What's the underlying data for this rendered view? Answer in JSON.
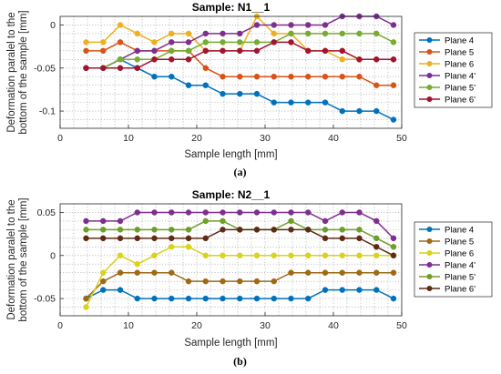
{
  "chart_data": [
    {
      "type": "line",
      "title": "Sample: N1__1",
      "xlabel": "Sample length [mm]",
      "ylabel": "Deformation paralel to the bottom of the sample [mm]",
      "ylabel_lines": [
        "Deformation paralel to the",
        "bottom of the sample [mm]"
      ],
      "xlim": [
        0,
        50
      ],
      "ylim": [
        -0.12,
        0.01
      ],
      "xticks": [
        0,
        10,
        20,
        30,
        40,
        50
      ],
      "yticks": [
        -0.1,
        -0.05,
        0
      ],
      "ytick_labels": [
        "-0.1",
        "-0.05",
        "0"
      ],
      "grid": true,
      "legend_position": "right",
      "caption": "(a)",
      "x": [
        3.8,
        6.3,
        8.8,
        11.3,
        13.8,
        16.3,
        18.8,
        21.3,
        23.8,
        26.3,
        28.8,
        31.3,
        33.8,
        36.3,
        38.8,
        41.3,
        43.8,
        46.3,
        48.8
      ],
      "series": [
        {
          "name": "Plane 4",
          "color": "#0072BD",
          "values": [
            -0.05,
            -0.05,
            -0.04,
            -0.05,
            -0.06,
            -0.06,
            -0.07,
            -0.07,
            -0.08,
            -0.08,
            -0.08,
            -0.09,
            -0.09,
            -0.09,
            -0.09,
            -0.1,
            -0.1,
            -0.1,
            -0.11
          ]
        },
        {
          "name": "Plane 5",
          "color": "#D95319",
          "values": [
            -0.03,
            -0.03,
            -0.02,
            -0.03,
            -0.03,
            -0.03,
            -0.03,
            -0.05,
            -0.06,
            -0.06,
            -0.06,
            -0.06,
            -0.06,
            -0.06,
            -0.06,
            -0.06,
            -0.06,
            -0.07,
            -0.07
          ]
        },
        {
          "name": "Plane 6",
          "color": "#EDB120",
          "values": [
            -0.02,
            -0.02,
            0,
            -0.01,
            -0.02,
            -0.01,
            -0.01,
            -0.03,
            -0.03,
            -0.03,
            0.01,
            -0.01,
            -0.01,
            -0.03,
            -0.03,
            -0.04,
            -0.04,
            -0.04,
            -0.04
          ]
        },
        {
          "name": "Plane 4'",
          "color": "#7E2F8E",
          "values": [
            -0.05,
            -0.05,
            -0.04,
            -0.03,
            -0.03,
            -0.02,
            -0.02,
            -0.01,
            -0.01,
            -0.01,
            0,
            0,
            0,
            0,
            0,
            0.01,
            0.01,
            0.01,
            0
          ]
        },
        {
          "name": "Plane 5'",
          "color": "#77AC30",
          "values": [
            -0.05,
            -0.05,
            -0.04,
            -0.04,
            -0.04,
            -0.03,
            -0.03,
            -0.02,
            -0.02,
            -0.02,
            -0.02,
            -0.02,
            -0.01,
            -0.01,
            -0.01,
            -0.01,
            -0.01,
            -0.01,
            -0.02
          ]
        },
        {
          "name": "Plane 6'",
          "color": "#A2142F",
          "values": [
            -0.05,
            -0.05,
            -0.05,
            -0.05,
            -0.04,
            -0.04,
            -0.04,
            -0.03,
            -0.03,
            -0.03,
            -0.03,
            -0.02,
            -0.02,
            -0.03,
            -0.03,
            -0.03,
            -0.04,
            -0.04,
            -0.04
          ]
        }
      ]
    },
    {
      "type": "line",
      "title": "Sample: N2__1",
      "xlabel": "Sample length [mm]",
      "ylabel": "Deformation paralel to the bottom of the sample [mm]",
      "ylabel_lines": [
        "Deformation paralel to the",
        "bottom of the sample [mm]"
      ],
      "xlim": [
        0,
        50
      ],
      "ylim": [
        -0.07,
        0.06
      ],
      "xticks": [
        0,
        10,
        20,
        30,
        40,
        50
      ],
      "yticks": [
        -0.05,
        0,
        0.05
      ],
      "ytick_labels": [
        "-0.05",
        "0",
        "0.05"
      ],
      "grid": true,
      "legend_position": "right",
      "caption": "(b)",
      "x": [
        3.8,
        6.3,
        8.8,
        11.3,
        13.8,
        16.3,
        18.8,
        21.3,
        23.8,
        26.3,
        28.8,
        31.3,
        33.8,
        36.3,
        38.8,
        41.3,
        43.8,
        46.3,
        48.8
      ],
      "series": [
        {
          "name": "Plane 4",
          "color": "#0072BD",
          "values": [
            -0.05,
            -0.04,
            -0.04,
            -0.05,
            -0.05,
            -0.05,
            -0.05,
            -0.05,
            -0.05,
            -0.05,
            -0.05,
            -0.05,
            -0.05,
            -0.05,
            -0.04,
            -0.04,
            -0.04,
            -0.04,
            -0.05
          ]
        },
        {
          "name": "Plane 5",
          "color": "#9E6A17",
          "values": [
            -0.05,
            -0.03,
            -0.02,
            -0.02,
            -0.02,
            -0.02,
            -0.03,
            -0.03,
            -0.03,
            -0.03,
            -0.03,
            -0.03,
            -0.02,
            -0.02,
            -0.02,
            -0.02,
            -0.02,
            -0.02,
            -0.02
          ]
        },
        {
          "name": "Plane 6",
          "color": "#D9D21E",
          "values": [
            -0.06,
            -0.02,
            0,
            -0.01,
            0,
            0.01,
            0.01,
            0,
            0,
            0,
            0,
            0,
            0,
            0,
            0,
            0,
            0,
            0,
            0
          ]
        },
        {
          "name": "Plane 4'",
          "color": "#7E2F8E",
          "values": [
            0.04,
            0.04,
            0.04,
            0.05,
            0.05,
            0.05,
            0.05,
            0.05,
            0.05,
            0.05,
            0.05,
            0.05,
            0.05,
            0.05,
            0.04,
            0.05,
            0.05,
            0.04,
            0.02
          ]
        },
        {
          "name": "Plane 5'",
          "color": "#6E9E2A",
          "values": [
            0.03,
            0.03,
            0.03,
            0.03,
            0.03,
            0.03,
            0.03,
            0.04,
            0.04,
            0.03,
            0.03,
            0.03,
            0.04,
            0.03,
            0.03,
            0.03,
            0.03,
            0.02,
            0.01
          ]
        },
        {
          "name": "Plane 6'",
          "color": "#5E2C16",
          "values": [
            0.02,
            0.02,
            0.02,
            0.02,
            0.02,
            0.02,
            0.02,
            0.02,
            0.03,
            0.03,
            0.03,
            0.03,
            0.03,
            0.03,
            0.02,
            0.02,
            0.02,
            0.01,
            0
          ]
        }
      ]
    }
  ]
}
